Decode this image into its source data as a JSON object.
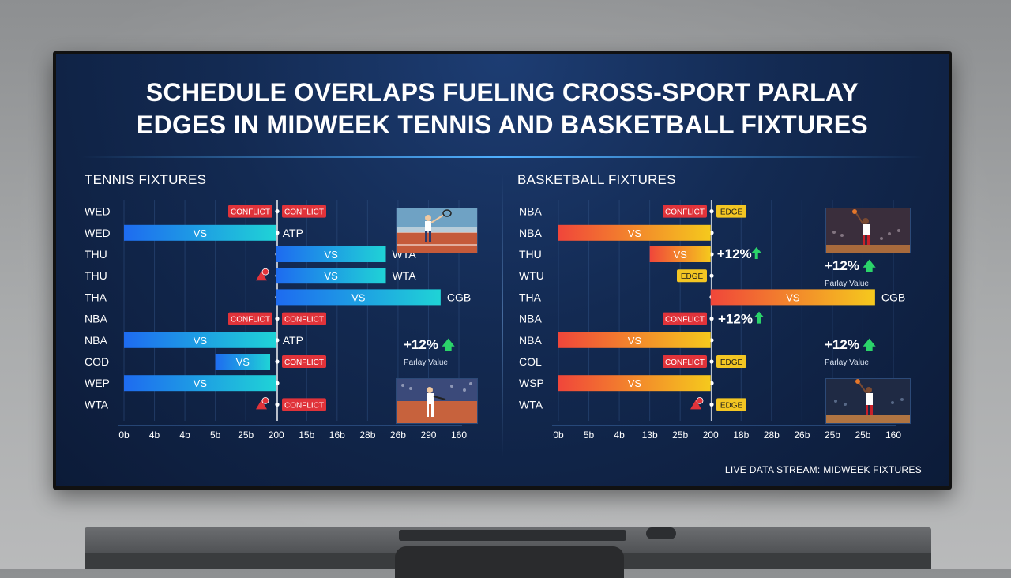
{
  "headline": {
    "line1": "SCHEDULE OVERLAPS FUELING CROSS-SPORT PARLAY",
    "line2": "EDGES IN MIDWEEK TENNIS AND BASKETBALL FIXTURES"
  },
  "footer": "LIVE DATA STREAM: MIDWEEK FIXTURES",
  "colors": {
    "tennis_bar_start": "#1e6bf0",
    "tennis_bar_end": "#1fd3d6",
    "basket_bar_start": "#f0463a",
    "basket_bar_end": "#f5c91d",
    "conflict": "#e0333a",
    "edge": "#f3c623",
    "up_arrow": "#2bd46a"
  },
  "chart_data": [
    {
      "type": "bar",
      "title": "TENNIS FIXTURES",
      "x_ticks": [
        "0b",
        "4b",
        "4b",
        "5b",
        "25b",
        "200",
        "15b",
        "16b",
        "28b",
        "26b",
        "290",
        "160"
      ],
      "rows": [
        {
          "label": "WED",
          "start": null,
          "end": null,
          "bar_text": "",
          "markers": [
            {
              "kind": "conflict",
              "text": "CONFLICT",
              "side": "left"
            },
            {
              "kind": "conflict",
              "text": "CONFLICT",
              "side": "right"
            }
          ],
          "right_text": ""
        },
        {
          "label": "WED",
          "start": 0,
          "end": 5,
          "bar_text": "VS",
          "markers": [],
          "right_text": "ATP"
        },
        {
          "label": "THU",
          "start": 5,
          "end": 8.6,
          "bar_text": "VS",
          "markers": [],
          "right_text": "WTA"
        },
        {
          "label": "THU",
          "start": 5,
          "end": 8.6,
          "bar_text": "VS",
          "markers": [
            {
              "kind": "alert",
              "text": "",
              "side": "left"
            }
          ],
          "right_text": "WTA"
        },
        {
          "label": "THA",
          "start": 5,
          "end": 10.4,
          "bar_text": "VS",
          "markers": [],
          "right_text": "CGB"
        },
        {
          "label": "NBA",
          "start": null,
          "end": null,
          "bar_text": "",
          "markers": [
            {
              "kind": "conflict",
              "text": "CONFLICT",
              "side": "left"
            },
            {
              "kind": "conflict",
              "text": "CONFLICT",
              "side": "right"
            }
          ],
          "right_text": ""
        },
        {
          "label": "NBA",
          "start": 0,
          "end": 5,
          "bar_text": "VS",
          "markers": [],
          "right_text": "ATP"
        },
        {
          "label": "COD",
          "start": 3,
          "end": 4.8,
          "bar_text": "VS",
          "markers": [
            {
              "kind": "conflict",
              "text": "CONFLICT",
              "side": "right"
            }
          ],
          "right_text": ""
        },
        {
          "label": "WEP",
          "start": 0,
          "end": 5,
          "bar_text": "VS",
          "markers": [],
          "right_text": ""
        },
        {
          "label": "WTA",
          "start": null,
          "end": null,
          "bar_text": "",
          "markers": [
            {
              "kind": "alert",
              "text": "",
              "side": "left"
            },
            {
              "kind": "conflict",
              "text": "CONFLICT",
              "side": "right"
            }
          ],
          "right_text": ""
        }
      ],
      "annotations": [
        {
          "value": "+12%",
          "caption": "Parlay Value",
          "row": 6
        }
      ]
    },
    {
      "type": "bar",
      "title": "BASKETBALL FIXTURES",
      "x_ticks": [
        "0b",
        "5b",
        "4b",
        "13b",
        "25b",
        "200",
        "18b",
        "28b",
        "26b",
        "25b",
        "25b",
        "160"
      ],
      "rows": [
        {
          "label": "NBA",
          "start": null,
          "end": null,
          "bar_text": "",
          "markers": [
            {
              "kind": "conflict",
              "text": "CONFLICT",
              "side": "left"
            },
            {
              "kind": "edge",
              "text": "EDGE",
              "side": "right"
            }
          ],
          "right_text": ""
        },
        {
          "label": "NBA",
          "start": 0,
          "end": 5,
          "bar_text": "VS",
          "markers": [],
          "right_text": ""
        },
        {
          "label": "THU",
          "start": 3,
          "end": 5,
          "bar_text": "VS",
          "markers": [],
          "right_text": "+12%"
        },
        {
          "label": "WTU",
          "start": null,
          "end": null,
          "bar_text": "",
          "markers": [
            {
              "kind": "edge",
              "text": "EDGE",
              "side": "left"
            }
          ],
          "right_text": ""
        },
        {
          "label": "THA",
          "start": 5,
          "end": 10.4,
          "bar_text": "VS",
          "markers": [],
          "right_text": "CGB"
        },
        {
          "label": "NBA",
          "start": null,
          "end": null,
          "bar_text": "",
          "markers": [
            {
              "kind": "conflict",
              "text": "CONFLICT",
              "side": "left"
            }
          ],
          "right_text": "+12%"
        },
        {
          "label": "NBA",
          "start": 0,
          "end": 5,
          "bar_text": "VS",
          "markers": [],
          "right_text": ""
        },
        {
          "label": "COL",
          "start": null,
          "end": null,
          "bar_text": "",
          "markers": [
            {
              "kind": "conflict",
              "text": "CONFLICT",
              "side": "left"
            },
            {
              "kind": "edge",
              "text": "EDGE",
              "side": "right"
            }
          ],
          "right_text": ""
        },
        {
          "label": "WSP",
          "start": 0,
          "end": 5,
          "bar_text": "VS",
          "markers": [],
          "right_text": ""
        },
        {
          "label": "WTA",
          "start": null,
          "end": null,
          "bar_text": "",
          "markers": [
            {
              "kind": "alert",
              "text": "",
              "side": "left"
            },
            {
              "kind": "edge",
              "text": "EDGE",
              "side": "right"
            }
          ],
          "right_text": ""
        }
      ],
      "annotations": [
        {
          "value": "+12%",
          "caption": "Parlay Value",
          "row": 2
        },
        {
          "value": "+12%",
          "caption": "Parlay Value",
          "row": 6
        }
      ]
    }
  ]
}
